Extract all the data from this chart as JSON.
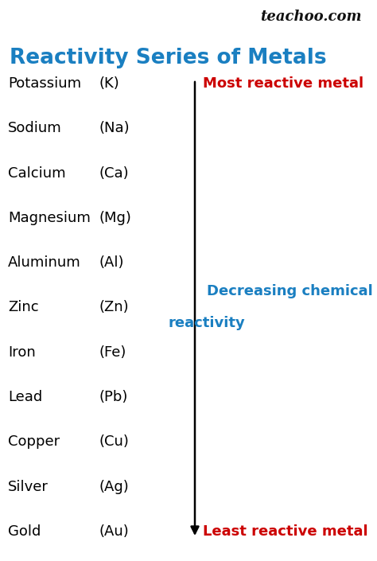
{
  "title": "Reactivity Series of Metals",
  "title_color": "#1a7fc1",
  "title_fontsize": 19,
  "watermark": "teachoo.com",
  "watermark_color": "#111111",
  "watermark_fontsize": 13,
  "background_color": "#ffffff",
  "metals": [
    {
      "name": "Potassium",
      "symbol": "(K)"
    },
    {
      "name": "Sodium",
      "symbol": "(Na)"
    },
    {
      "name": "Calcium",
      "symbol": "(Ca)"
    },
    {
      "name": "Magnesium",
      "symbol": "(Mg)"
    },
    {
      "name": "Aluminum",
      "symbol": "(Al)"
    },
    {
      "name": "Zinc",
      "symbol": "(Zn)"
    },
    {
      "name": "Iron",
      "symbol": "(Fe)"
    },
    {
      "name": "Lead",
      "symbol": "(Pb)"
    },
    {
      "name": "Copper",
      "symbol": "(Cu)"
    },
    {
      "name": "Silver",
      "symbol": "(Ag)"
    },
    {
      "name": "Gold",
      "symbol": "(Au)"
    }
  ],
  "most_reactive_label": "Most reactive metal",
  "least_reactive_label": "Least reactive metal",
  "decreasing_label_line1": "Decreasing chemical",
  "decreasing_label_line2": "reactivity",
  "reactive_label_color": "#cc0000",
  "decreasing_label_color": "#1a7fc1",
  "metal_name_color": "#000000",
  "symbol_color": "#000000",
  "arrow_color": "#000000",
  "name_fontsize": 13,
  "symbol_fontsize": 13,
  "label_fontsize": 13,
  "fig_width": 4.74,
  "fig_height": 7.05,
  "dpi": 100
}
